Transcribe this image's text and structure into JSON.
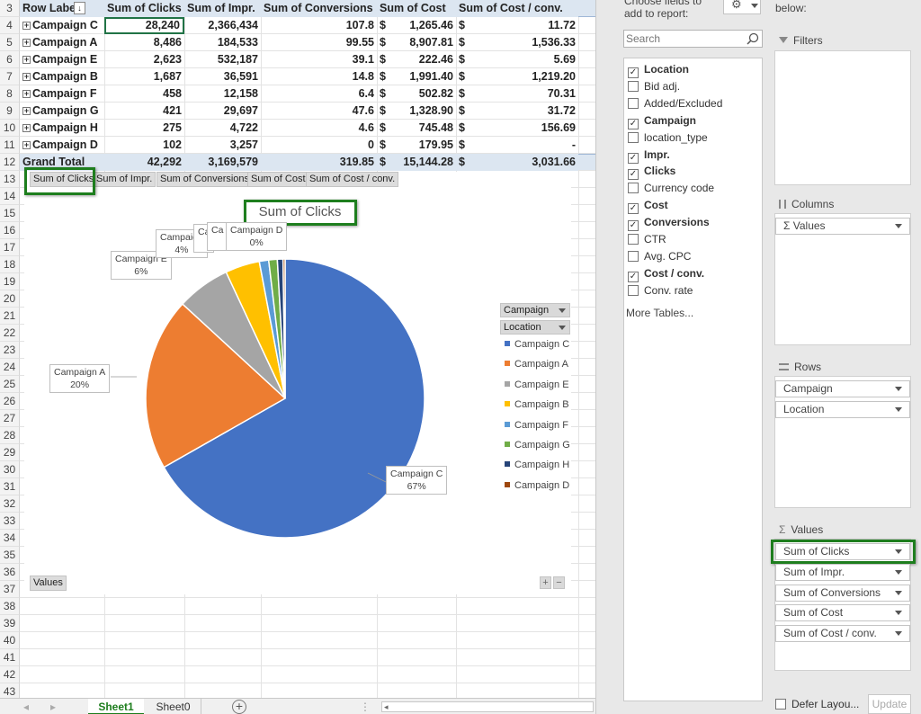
{
  "pivot": {
    "header": {
      "rowlabels": "Row Labels",
      "c1": "Sum of Clicks",
      "c2": "Sum of Impr.",
      "c3": "Sum of Conversions",
      "c4": "Sum of Cost",
      "c5": "Sum of Cost / conv."
    },
    "rows": [
      {
        "num": "4",
        "name": "Campaign C",
        "clicks": "28,240",
        "impr": "2,366,434",
        "conv": "107.8",
        "cost": "1,265.46",
        "cpc": "11.72"
      },
      {
        "num": "5",
        "name": "Campaign A",
        "clicks": "8,486",
        "impr": "184,533",
        "conv": "99.55",
        "cost": "8,907.81",
        "cpc": "1,536.33"
      },
      {
        "num": "6",
        "name": "Campaign E",
        "clicks": "2,623",
        "impr": "532,187",
        "conv": "39.1",
        "cost": "222.46",
        "cpc": "5.69"
      },
      {
        "num": "7",
        "name": "Campaign B",
        "clicks": "1,687",
        "impr": "36,591",
        "conv": "14.8",
        "cost": "1,991.40",
        "cpc": "1,219.20"
      },
      {
        "num": "8",
        "name": "Campaign F",
        "clicks": "458",
        "impr": "12,158",
        "conv": "6.4",
        "cost": "502.82",
        "cpc": "70.31"
      },
      {
        "num": "9",
        "name": "Campaign G",
        "clicks": "421",
        "impr": "29,697",
        "conv": "47.6",
        "cost": "1,328.90",
        "cpc": "31.72"
      },
      {
        "num": "10",
        "name": "Campaign H",
        "clicks": "275",
        "impr": "4,722",
        "conv": "4.6",
        "cost": "745.48",
        "cpc": "156.69"
      },
      {
        "num": "11",
        "name": "Campaign D",
        "clicks": "102",
        "impr": "3,257",
        "conv": "0",
        "cost": "179.95",
        "cpc": "-"
      }
    ],
    "total": {
      "num": "12",
      "name": "Grand Total",
      "clicks": "42,292",
      "impr": "3,169,579",
      "conv": "319.85",
      "cost": "15,144.28",
      "cpc": "3,031.66"
    },
    "dollar": "$",
    "header_rownum": "3",
    "other_rownums": [
      "13",
      "14",
      "15",
      "16",
      "17",
      "18",
      "19",
      "20",
      "21",
      "22",
      "23",
      "24",
      "25",
      "26",
      "27",
      "28",
      "29",
      "30",
      "31",
      "32",
      "33",
      "34",
      "35",
      "36",
      "37",
      "38",
      "39",
      "40",
      "41",
      "42",
      "43"
    ]
  },
  "chart": {
    "field_buttons": [
      "Sum of Clicks",
      "Sum of Impr.",
      "Sum of Conversions",
      "Sum of Cost",
      "Sum of Cost / conv."
    ],
    "values_button": "Values",
    "legend_filters": [
      "Campaign",
      "Location"
    ],
    "zoom": [
      "+",
      "−"
    ]
  },
  "chart_data": {
    "type": "pie",
    "title": "Sum of Clicks",
    "categories": [
      "Campaign C",
      "Campaign A",
      "Campaign E",
      "Campaign B",
      "Campaign F",
      "Campaign G",
      "Campaign H",
      "Campaign D"
    ],
    "values": [
      28240,
      8486,
      2623,
      1687,
      458,
      421,
      275,
      102
    ],
    "colors": [
      "#4472c4",
      "#ed7d31",
      "#a5a5a5",
      "#ffc000",
      "#5b9bd5",
      "#70ad47",
      "#264478",
      "#9e480e"
    ],
    "labels": {
      "c": "Campaign C",
      "c_pct": "67%",
      "a": "Campaign A",
      "a_pct": "20%",
      "e": "Campaign E",
      "e_pct": "6%",
      "b": "Campaign",
      "b_pct": "4%",
      "f": "Ca",
      "g": "Ca",
      "d": "Campaign D",
      "d_pct": "0%"
    },
    "legend_placement": "right"
  },
  "sheet_tabs": {
    "active": "Sheet1",
    "other": "Sheet0",
    "add": "+"
  },
  "field_list": {
    "choose_text": "Choose fields to add to report:",
    "drag_text": "below:",
    "search_placeholder": "Search",
    "fields": [
      {
        "label": "Location",
        "checked": true
      },
      {
        "label": "Bid adj.",
        "checked": false
      },
      {
        "label": "Added/Excluded",
        "checked": false
      },
      {
        "label": "Campaign",
        "checked": true
      },
      {
        "label": "location_type",
        "checked": false
      },
      {
        "label": "Impr.",
        "checked": true
      },
      {
        "label": "Clicks",
        "checked": true
      },
      {
        "label": "Currency code",
        "checked": false
      },
      {
        "label": "Cost",
        "checked": true
      },
      {
        "label": "Conversions",
        "checked": true
      },
      {
        "label": "CTR",
        "checked": false
      },
      {
        "label": "Avg. CPC",
        "checked": false
      },
      {
        "label": "Cost / conv.",
        "checked": true
      },
      {
        "label": "Conv. rate",
        "checked": false
      }
    ],
    "more_tables": "More Tables...",
    "filters_label": "Filters",
    "columns_label": "Columns",
    "columns_items": [
      "Σ Values"
    ],
    "rows_label": "Rows",
    "rows_items": [
      "Campaign",
      "Location"
    ],
    "values_label": "Values",
    "values_items": [
      "Sum of Clicks",
      "Sum of Impr.",
      "Sum of Conversions",
      "Sum of Cost",
      "Sum of Cost / conv."
    ],
    "defer_label": "Defer Layou...",
    "update_label": "Update",
    "sigma": "Σ"
  }
}
